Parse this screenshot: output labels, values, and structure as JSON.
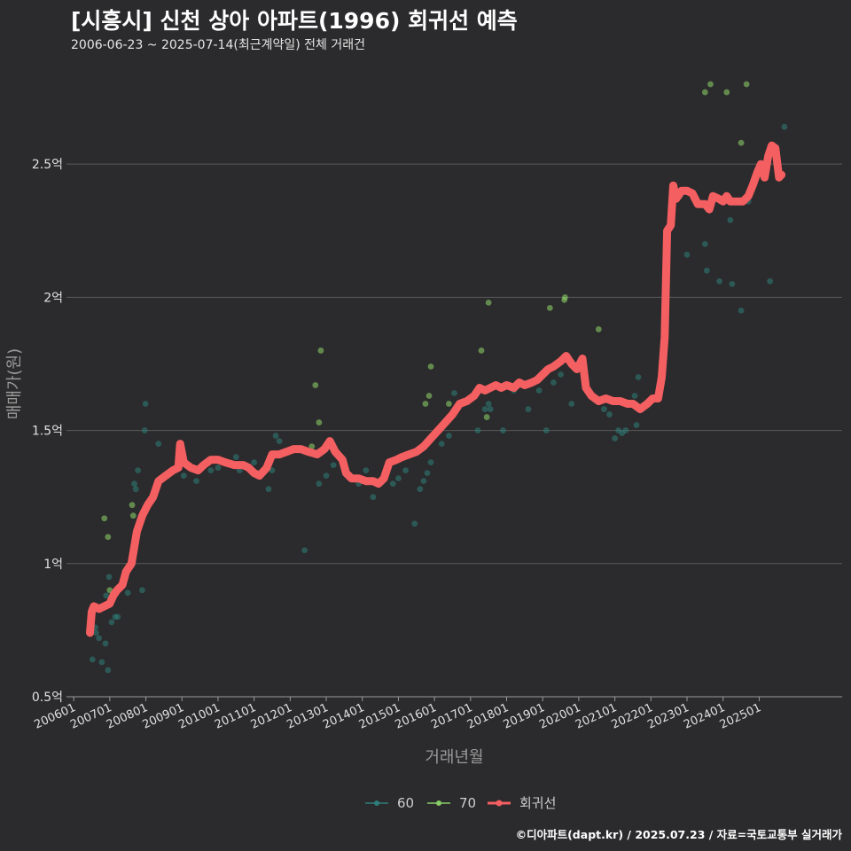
{
  "header": {
    "title": "[시흥시] 신천 상아 아파트(1996) 회귀선 예측",
    "subtitle": "2006-06-23 ~ 2025-07-14(최근계약일) 전체 거래건"
  },
  "footer": {
    "credit": "©디아파트(dapt.kr) / 2025.07.23 / 자료=국토교통부 실거래가"
  },
  "chart_data": {
    "type": "scatter",
    "xlabel": "거래년월",
    "ylabel": "매매가(원)",
    "x_unit": "fractional year",
    "xlim": [
      2005.8,
      2027.3
    ],
    "ylim": [
      0.5,
      2.85
    ],
    "yticks": [
      0.5,
      1.0,
      1.5,
      2.0,
      2.5
    ],
    "ytick_labels": [
      "0.5억",
      "1억",
      "1.5억",
      "2억",
      "2.5억"
    ],
    "xticks": [
      2006,
      2007,
      2008,
      2009,
      2010,
      2011,
      2012,
      2013,
      2014,
      2015,
      2016,
      2017,
      2018,
      2019,
      2020,
      2021,
      2022,
      2023,
      2024,
      2025
    ],
    "xtick_labels": [
      "200601",
      "200701",
      "200801",
      "200901",
      "201001",
      "201101",
      "201201",
      "201301",
      "201401",
      "201501",
      "201601",
      "201701",
      "201801",
      "201901",
      "202001",
      "202101",
      "202201",
      "202301",
      "202401",
      "202501"
    ],
    "legend": [
      "60",
      "70",
      "회귀선"
    ],
    "colors": {
      "s60": "#2e7f7a",
      "s70": "#88cc66",
      "regression": "#f45f61",
      "grid": "#5a5a5a",
      "axis": "#9a9a9a",
      "tick_text": "#e0e0e0",
      "label_text": "#9a9a9a"
    },
    "series": [
      {
        "name": "60",
        "points": [
          [
            2006.52,
            0.64
          ],
          [
            2006.6,
            0.76
          ],
          [
            2006.62,
            0.74
          ],
          [
            2006.7,
            0.72
          ],
          [
            2006.78,
            0.63
          ],
          [
            2006.88,
            0.7
          ],
          [
            2006.95,
            0.6
          ],
          [
            2006.9,
            0.88
          ],
          [
            2006.98,
            0.95
          ],
          [
            2007.05,
            0.78
          ],
          [
            2007.15,
            0.8
          ],
          [
            2007.22,
            0.8
          ],
          [
            2007.5,
            0.89
          ],
          [
            2007.68,
            1.3
          ],
          [
            2007.72,
            1.28
          ],
          [
            2007.78,
            1.35
          ],
          [
            2007.9,
            0.9
          ],
          [
            2007.97,
            1.5
          ],
          [
            2007.99,
            1.6
          ],
          [
            2008.35,
            1.45
          ],
          [
            2009.05,
            1.33
          ],
          [
            2009.4,
            1.31
          ],
          [
            2009.8,
            1.35
          ],
          [
            2010.0,
            1.36
          ],
          [
            2010.5,
            1.4
          ],
          [
            2010.6,
            1.35
          ],
          [
            2011.0,
            1.38
          ],
          [
            2011.4,
            1.28
          ],
          [
            2011.5,
            1.35
          ],
          [
            2011.6,
            1.48
          ],
          [
            2011.7,
            1.46
          ],
          [
            2012.4,
            1.05
          ],
          [
            2012.8,
            1.3
          ],
          [
            2013.0,
            1.33
          ],
          [
            2013.2,
            1.37
          ],
          [
            2013.9,
            1.3
          ],
          [
            2014.1,
            1.35
          ],
          [
            2014.3,
            1.25
          ],
          [
            2014.6,
            1.33
          ],
          [
            2014.85,
            1.3
          ],
          [
            2015.0,
            1.32
          ],
          [
            2015.2,
            1.35
          ],
          [
            2015.45,
            1.15
          ],
          [
            2015.6,
            1.28
          ],
          [
            2015.7,
            1.31
          ],
          [
            2015.8,
            1.34
          ],
          [
            2015.9,
            1.38
          ],
          [
            2016.2,
            1.45
          ],
          [
            2016.4,
            1.48
          ],
          [
            2016.55,
            1.64
          ],
          [
            2016.7,
            1.6
          ],
          [
            2017.2,
            1.5
          ],
          [
            2017.4,
            1.58
          ],
          [
            2017.5,
            1.6
          ],
          [
            2017.55,
            1.58
          ],
          [
            2017.9,
            1.5
          ],
          [
            2018.2,
            1.65
          ],
          [
            2018.6,
            1.58
          ],
          [
            2018.9,
            1.65
          ],
          [
            2019.1,
            1.5
          ],
          [
            2019.3,
            1.68
          ],
          [
            2019.5,
            1.71
          ],
          [
            2019.8,
            1.6
          ],
          [
            2020.7,
            1.58
          ],
          [
            2020.85,
            1.56
          ],
          [
            2021.0,
            1.47
          ],
          [
            2021.1,
            1.5
          ],
          [
            2021.2,
            1.49
          ],
          [
            2021.3,
            1.5
          ],
          [
            2021.55,
            1.63
          ],
          [
            2021.65,
            1.7
          ],
          [
            2021.6,
            1.52
          ],
          [
            2021.75,
            1.58
          ],
          [
            2022.6,
            2.4
          ],
          [
            2022.8,
            2.38
          ],
          [
            2023.0,
            2.16
          ],
          [
            2023.5,
            2.2
          ],
          [
            2023.55,
            2.1
          ],
          [
            2023.9,
            2.06
          ],
          [
            2024.2,
            2.29
          ],
          [
            2024.25,
            2.05
          ],
          [
            2024.5,
            1.95
          ],
          [
            2024.7,
            2.36
          ],
          [
            2025.3,
            2.06
          ],
          [
            2025.7,
            2.64
          ]
        ]
      },
      {
        "name": "70",
        "points": [
          [
            2006.85,
            1.17
          ],
          [
            2006.95,
            1.1
          ],
          [
            2007.65,
            1.18
          ],
          [
            2007.62,
            1.22
          ],
          [
            2007.0,
            0.9
          ],
          [
            2012.7,
            1.67
          ],
          [
            2012.85,
            1.8
          ],
          [
            2012.8,
            1.53
          ],
          [
            2012.6,
            1.44
          ],
          [
            2015.75,
            1.6
          ],
          [
            2015.85,
            1.63
          ],
          [
            2015.9,
            1.74
          ],
          [
            2016.4,
            1.6
          ],
          [
            2017.3,
            1.8
          ],
          [
            2017.5,
            1.98
          ],
          [
            2017.45,
            1.55
          ],
          [
            2019.2,
            1.96
          ],
          [
            2019.6,
            1.99
          ],
          [
            2019.62,
            2.0
          ],
          [
            2020.55,
            1.88
          ],
          [
            2023.5,
            2.77
          ],
          [
            2023.65,
            2.8
          ],
          [
            2024.1,
            2.77
          ],
          [
            2024.5,
            2.58
          ],
          [
            2024.65,
            2.8
          ],
          [
            2025.45,
            2.56
          ]
        ]
      }
    ],
    "regression": [
      [
        2006.45,
        0.74
      ],
      [
        2006.5,
        0.82
      ],
      [
        2006.56,
        0.84
      ],
      [
        2006.7,
        0.83
      ],
      [
        2006.85,
        0.84
      ],
      [
        2007.0,
        0.85
      ],
      [
        2007.1,
        0.88
      ],
      [
        2007.2,
        0.9
      ],
      [
        2007.35,
        0.92
      ],
      [
        2007.45,
        0.97
      ],
      [
        2007.6,
        1.0
      ],
      [
        2007.75,
        1.12
      ],
      [
        2007.9,
        1.18
      ],
      [
        2008.05,
        1.22
      ],
      [
        2008.2,
        1.25
      ],
      [
        2008.35,
        1.31
      ],
      [
        2008.55,
        1.33
      ],
      [
        2008.75,
        1.35
      ],
      [
        2008.9,
        1.36
      ],
      [
        2008.95,
        1.45
      ],
      [
        2009.05,
        1.38
      ],
      [
        2009.25,
        1.36
      ],
      [
        2009.45,
        1.35
      ],
      [
        2009.6,
        1.37
      ],
      [
        2009.8,
        1.39
      ],
      [
        2010.0,
        1.39
      ],
      [
        2010.2,
        1.38
      ],
      [
        2010.45,
        1.37
      ],
      [
        2010.7,
        1.37
      ],
      [
        2010.85,
        1.36
      ],
      [
        2011.0,
        1.34
      ],
      [
        2011.15,
        1.33
      ],
      [
        2011.35,
        1.36
      ],
      [
        2011.5,
        1.41
      ],
      [
        2011.7,
        1.41
      ],
      [
        2011.9,
        1.42
      ],
      [
        2012.1,
        1.43
      ],
      [
        2012.3,
        1.43
      ],
      [
        2012.5,
        1.42
      ],
      [
        2012.75,
        1.41
      ],
      [
        2012.95,
        1.43
      ],
      [
        2013.1,
        1.46
      ],
      [
        2013.25,
        1.42
      ],
      [
        2013.45,
        1.39
      ],
      [
        2013.55,
        1.34
      ],
      [
        2013.7,
        1.32
      ],
      [
        2013.9,
        1.32
      ],
      [
        2014.1,
        1.31
      ],
      [
        2014.3,
        1.31
      ],
      [
        2014.45,
        1.3
      ],
      [
        2014.6,
        1.32
      ],
      [
        2014.75,
        1.38
      ],
      [
        2014.95,
        1.39
      ],
      [
        2015.1,
        1.4
      ],
      [
        2015.3,
        1.41
      ],
      [
        2015.5,
        1.42
      ],
      [
        2015.7,
        1.44
      ],
      [
        2015.9,
        1.47
      ],
      [
        2016.1,
        1.5
      ],
      [
        2016.3,
        1.53
      ],
      [
        2016.5,
        1.56
      ],
      [
        2016.7,
        1.6
      ],
      [
        2016.9,
        1.61
      ],
      [
        2017.1,
        1.63
      ],
      [
        2017.25,
        1.66
      ],
      [
        2017.4,
        1.65
      ],
      [
        2017.55,
        1.66
      ],
      [
        2017.7,
        1.67
      ],
      [
        2017.85,
        1.66
      ],
      [
        2018.0,
        1.67
      ],
      [
        2018.2,
        1.66
      ],
      [
        2018.35,
        1.68
      ],
      [
        2018.5,
        1.67
      ],
      [
        2018.7,
        1.68
      ],
      [
        2018.85,
        1.69
      ],
      [
        2019.0,
        1.71
      ],
      [
        2019.15,
        1.73
      ],
      [
        2019.3,
        1.74
      ],
      [
        2019.5,
        1.76
      ],
      [
        2019.65,
        1.78
      ],
      [
        2019.8,
        1.75
      ],
      [
        2019.95,
        1.73
      ],
      [
        2020.1,
        1.77
      ],
      [
        2020.2,
        1.66
      ],
      [
        2020.35,
        1.63
      ],
      [
        2020.55,
        1.61
      ],
      [
        2020.75,
        1.62
      ],
      [
        2020.95,
        1.61
      ],
      [
        2021.15,
        1.61
      ],
      [
        2021.35,
        1.6
      ],
      [
        2021.5,
        1.6
      ],
      [
        2021.7,
        1.58
      ],
      [
        2021.9,
        1.6
      ],
      [
        2022.05,
        1.62
      ],
      [
        2022.2,
        1.62
      ],
      [
        2022.3,
        1.7
      ],
      [
        2022.38,
        1.85
      ],
      [
        2022.45,
        2.25
      ],
      [
        2022.55,
        2.27
      ],
      [
        2022.62,
        2.42
      ],
      [
        2022.7,
        2.37
      ],
      [
        2022.85,
        2.4
      ],
      [
        2023.0,
        2.4
      ],
      [
        2023.15,
        2.39
      ],
      [
        2023.3,
        2.35
      ],
      [
        2023.5,
        2.35
      ],
      [
        2023.62,
        2.33
      ],
      [
        2023.72,
        2.38
      ],
      [
        2023.88,
        2.37
      ],
      [
        2024.0,
        2.36
      ],
      [
        2024.1,
        2.38
      ],
      [
        2024.2,
        2.36
      ],
      [
        2024.4,
        2.36
      ],
      [
        2024.55,
        2.36
      ],
      [
        2024.7,
        2.38
      ],
      [
        2024.82,
        2.42
      ],
      [
        2024.95,
        2.47
      ],
      [
        2025.05,
        2.5
      ],
      [
        2025.15,
        2.45
      ],
      [
        2025.25,
        2.53
      ],
      [
        2025.35,
        2.57
      ],
      [
        2025.45,
        2.56
      ],
      [
        2025.55,
        2.45
      ],
      [
        2025.62,
        2.46
      ]
    ]
  }
}
